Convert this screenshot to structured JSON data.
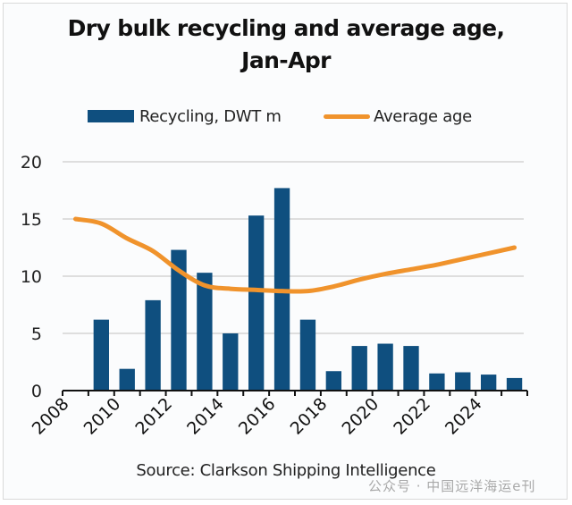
{
  "chart_data": {
    "type": "bar",
    "title": "Dry bulk recycling and average age, Jan-Apr",
    "title_lines": [
      "Dry bulk recycling and average age,",
      "Jan-Apr"
    ],
    "categories": [
      "2008",
      "2009",
      "2010",
      "2011",
      "2012",
      "2013",
      "2014",
      "2015",
      "2016",
      "2017",
      "2018",
      "2019",
      "2020",
      "2021",
      "2022",
      "2023",
      "2024",
      "2025"
    ],
    "x_tick_labels": [
      "2008",
      "2010",
      "2012",
      "2014",
      "2016",
      "2018",
      "2020",
      "2022",
      "2024"
    ],
    "series": [
      {
        "name": "Recycling, DWT m",
        "type": "bar",
        "color": "#0f4f7f",
        "values": [
          0,
          6.2,
          1.9,
          7.9,
          12.3,
          10.3,
          5.0,
          15.3,
          17.7,
          6.2,
          1.7,
          3.9,
          4.1,
          3.9,
          1.5,
          1.6,
          1.4,
          1.1
        ]
      },
      {
        "name": "Average age",
        "type": "line",
        "color": "#f0932c",
        "values": [
          15.0,
          14.6,
          13.3,
          12.2,
          10.5,
          9.2,
          8.9,
          8.8,
          8.7,
          8.7,
          9.1,
          9.7,
          10.2,
          10.6,
          11.0,
          11.5,
          12.0,
          12.5
        ]
      }
    ],
    "xlabel": "",
    "ylabel": "",
    "ylim": [
      0,
      20
    ],
    "y_ticks": [
      0,
      5,
      10,
      15,
      20
    ],
    "grid": true,
    "legend_position": "top-center"
  },
  "source": "Source: Clarkson Shipping Intelligence",
  "watermark": "公众号 · 中国远洋海运e刊"
}
